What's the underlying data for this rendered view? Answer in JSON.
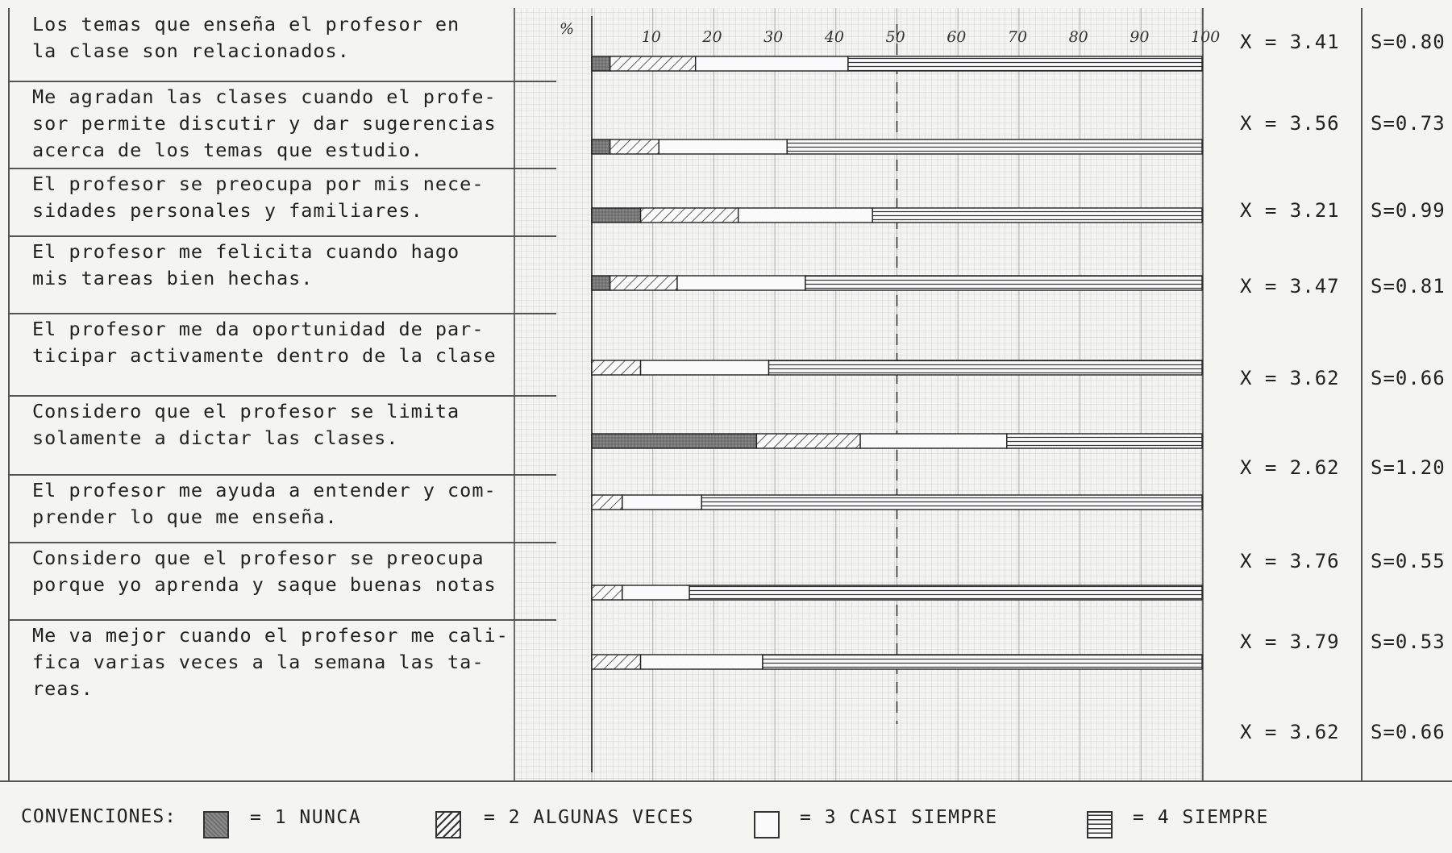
{
  "items": [
    {
      "text": "Los temas que enseña el profesor en\nla clase son relacionados.",
      "mean": "X = 3.41",
      "sd": "S=0.80"
    },
    {
      "text": "Me agradan las clases cuando el profe-\nsor permite discutir y dar sugerencias\nacerca de los temas que estudio.",
      "mean": "X = 3.56",
      "sd": "S=0.73"
    },
    {
      "text": "El profesor se preocupa por mis nece-\nsidades personales y familiares.",
      "mean": "X = 3.21",
      "sd": "S=0.99"
    },
    {
      "text": "El profesor me felicita cuando hago\nmis tareas bien hechas.",
      "mean": "X = 3.47",
      "sd": "S=0.81"
    },
    {
      "text": "El profesor me da oportunidad de par-\nticipar activamente dentro de la clase",
      "mean": "X = 3.62",
      "sd": "S=0.66"
    },
    {
      "text": "Considero que el profesor se limita\nsolamente a dictar las clases.",
      "mean": "X = 2.62",
      "sd": "S=1.20"
    },
    {
      "text": "El profesor me ayuda a entender y com-\nprender lo que me enseña.",
      "mean": "X = 3.76",
      "sd": "S=0.55"
    },
    {
      "text": "Considero que el profesor se preocupa\nporque yo aprenda y saque buenas notas",
      "mean": "X = 3.79",
      "sd": "S=0.53"
    },
    {
      "text": "Me va mejor cuando el profesor me cali-\nfica varias veces a la semana las ta-\nreas.",
      "mean": "X = 3.62",
      "sd": "S=0.66"
    }
  ],
  "legend": {
    "title": "CONVENCIONES:",
    "entries": [
      {
        "label": "= 1 NUNCA",
        "pattern": "dark"
      },
      {
        "label": "= 2 ALGUNAS VECES",
        "pattern": "diagonal"
      },
      {
        "label": "= 3 CASI SIEMPRE",
        "pattern": "blank"
      },
      {
        "label": "= 4  SIEMPRE",
        "pattern": "horizontal"
      }
    ]
  },
  "chart_data": {
    "type": "bar",
    "stacked": true,
    "orientation": "horizontal",
    "xlabel": "%",
    "xlim": [
      0,
      100
    ],
    "xticks": [
      "10",
      "20",
      "30",
      "40",
      "50",
      "60",
      "70",
      "80",
      "90",
      "100"
    ],
    "categories": [
      "Los temas que enseña el profesor en la clase son relacionados.",
      "Me agradan las clases cuando el profesor permite discutir y dar sugerencias acerca de los temas que estudio.",
      "El profesor se preocupa por mis necesidades personales y familiares.",
      "El profesor me felicita cuando hago mis tareas bien hechas.",
      "El profesor me da oportunidad de participar activamente dentro de la clase",
      "Considero que el profesor se limita solamente a dictar las clases.",
      "El profesor me ayuda a entender y comprender lo que me enseña.",
      "Considero que el profesor se preocupa porque yo aprenda y saque buenas notas",
      "Me va mejor cuando el profesor me califica varias veces a la semana las tareas."
    ],
    "series": [
      {
        "name": "1 NUNCA",
        "pattern": "dark",
        "values": [
          3,
          3,
          8,
          3,
          0,
          27,
          0,
          0,
          0
        ]
      },
      {
        "name": "2 ALGUNAS VECES",
        "pattern": "diagonal",
        "values": [
          14,
          8,
          16,
          11,
          8,
          17,
          5,
          5,
          8
        ]
      },
      {
        "name": "3 CASI SIEMPRE",
        "pattern": "blank",
        "values": [
          25,
          21,
          22,
          21,
          21,
          24,
          13,
          11,
          20
        ]
      },
      {
        "name": "4 SIEMPRE",
        "pattern": "horizontal",
        "values": [
          58,
          68,
          54,
          65,
          71,
          32,
          82,
          84,
          72
        ]
      }
    ],
    "means": [
      3.41,
      3.56,
      3.21,
      3.47,
      3.62,
      2.62,
      3.76,
      3.79,
      3.62
    ],
    "sds": [
      0.8,
      0.73,
      0.99,
      0.81,
      0.66,
      1.2,
      0.55,
      0.53,
      0.66
    ],
    "grid": true
  }
}
